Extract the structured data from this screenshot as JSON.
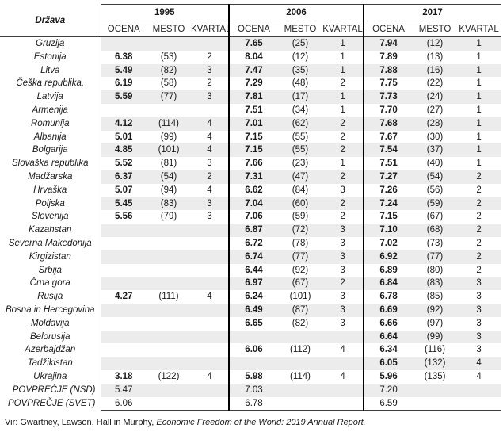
{
  "table": {
    "country_header": "Država",
    "year_groups": [
      {
        "year": "1995",
        "subcols": [
          "OCENA",
          "MESTO",
          "KVARTAL"
        ]
      },
      {
        "year": "2006",
        "subcols": [
          "OCENA",
          "MESTO",
          "KVARTAL"
        ]
      },
      {
        "year": "2017",
        "subcols": [
          "OCENA",
          "MESTO",
          "KVARTAL"
        ]
      }
    ],
    "rows": [
      {
        "country": "Gruzija",
        "cells": [
          "",
          "",
          "",
          "7.65",
          "(25)",
          "1",
          "7.94",
          "(12)",
          "1"
        ]
      },
      {
        "country": "Estonija",
        "cells": [
          "6.38",
          "(53)",
          "2",
          "8.04",
          "(12)",
          "1",
          "7.89",
          "(13)",
          "1"
        ]
      },
      {
        "country": "Litva",
        "cells": [
          "5.49",
          "(82)",
          "3",
          "7.47",
          "(35)",
          "1",
          "7.88",
          "(16)",
          "1"
        ]
      },
      {
        "country": "Češka republika.",
        "cells": [
          "6.19",
          "(58)",
          "2",
          "7.29",
          "(48)",
          "2",
          "7.75",
          "(22)",
          "1"
        ]
      },
      {
        "country": "Latvija",
        "cells": [
          "5.59",
          "(77)",
          "3",
          "7.81",
          "(17)",
          "1",
          "7.73",
          "(24)",
          "1"
        ]
      },
      {
        "country": "Armenija",
        "cells": [
          "",
          "",
          "",
          "7.51",
          "(34)",
          "1",
          "7.70",
          "(27)",
          "1"
        ]
      },
      {
        "country": "Romunija",
        "cells": [
          "4.12",
          "(114)",
          "4",
          "7.01",
          "(62)",
          "2",
          "7.68",
          "(28)",
          "1"
        ]
      },
      {
        "country": "Albanija",
        "cells": [
          "5.01",
          "(99)",
          "4",
          "7.15",
          "(55)",
          "2",
          "7.67",
          "(30)",
          "1"
        ]
      },
      {
        "country": "Bolgarija",
        "cells": [
          "4.85",
          "(101)",
          "4",
          "7.15",
          "(55)",
          "2",
          "7.54",
          "(37)",
          "1"
        ]
      },
      {
        "country": "Slovaška republika",
        "cells": [
          "5.52",
          "(81)",
          "3",
          "7.66",
          "(23)",
          "1",
          "7.51",
          "(40)",
          "1"
        ]
      },
      {
        "country": "Madžarska",
        "cells": [
          "6.37",
          "(54)",
          "2",
          "7.31",
          "(47)",
          "2",
          "7.27",
          "(54)",
          "2"
        ]
      },
      {
        "country": "Hrvaška",
        "cells": [
          "5.07",
          "(94)",
          "4",
          "6.62",
          "(84)",
          "3",
          "7.26",
          "(56)",
          "2"
        ]
      },
      {
        "country": "Poljska",
        "cells": [
          "5.45",
          "(83)",
          "3",
          "7.04",
          "(60)",
          "2",
          "7.24",
          "(59)",
          "2"
        ]
      },
      {
        "country": "Slovenija",
        "cells": [
          "5.56",
          "(79)",
          "3",
          "7.06",
          "(59)",
          "2",
          "7.15",
          "(67)",
          "2"
        ]
      },
      {
        "country": "Kazahstan",
        "cells": [
          "",
          "",
          "",
          "6.87",
          "(72)",
          "3",
          "7.10",
          "(68)",
          "2"
        ]
      },
      {
        "country": "Severna Makedonija",
        "cells": [
          "",
          "",
          "",
          "6.72",
          "(78)",
          "3",
          "7.02",
          "(73)",
          "2"
        ]
      },
      {
        "country": "Kirgizistan",
        "cells": [
          "",
          "",
          "",
          "6.74",
          "(77)",
          "3",
          "6.92",
          "(77)",
          "2"
        ]
      },
      {
        "country": "Srbija",
        "cells": [
          "",
          "",
          "",
          "6.44",
          "(92)",
          "3",
          "6.89",
          "(80)",
          "2"
        ]
      },
      {
        "country": "Črna gora",
        "cells": [
          "",
          "",
          "",
          "6.97",
          "(67)",
          "2",
          "6.84",
          "(83)",
          "3"
        ]
      },
      {
        "country": "Rusija",
        "cells": [
          "4.27",
          "(111)",
          "4",
          "6.24",
          "(101)",
          "3",
          "6.78",
          "(85)",
          "3"
        ]
      },
      {
        "country": "Bosna in Hercegovina",
        "cells": [
          "",
          "",
          "",
          "6.49",
          "(87)",
          "3",
          "6.69",
          "(92)",
          "3"
        ]
      },
      {
        "country": "Moldavija",
        "cells": [
          "",
          "",
          "",
          "6.65",
          "(82)",
          "3",
          "6.66",
          "(97)",
          "3"
        ]
      },
      {
        "country": "Belorusija",
        "cells": [
          "",
          "",
          "",
          "",
          "",
          "",
          "6.64",
          "(99)",
          "3"
        ]
      },
      {
        "country": "Azerbajdžan",
        "cells": [
          "",
          "",
          "",
          "6.06",
          "(112)",
          "4",
          "6.34",
          "(116)",
          "3"
        ]
      },
      {
        "country": "Tadžikistan",
        "cells": [
          "",
          "",
          "",
          "",
          "",
          "",
          "6.05",
          "(132)",
          "4"
        ]
      },
      {
        "country": "Ukrajina",
        "cells": [
          "3.18",
          "(122)",
          "4",
          "5.98",
          "(114)",
          "4",
          "5.96",
          "(135)",
          "4"
        ]
      }
    ],
    "summary_rows": [
      {
        "label": "POVPREČJE (NSD)",
        "cells": [
          "5.47",
          "",
          "",
          "7.03",
          "",
          "",
          "7.20",
          "",
          ""
        ]
      },
      {
        "label": "POVPREČJE (SVET)",
        "cells": [
          "6.06",
          "",
          "",
          "6.78",
          "",
          "",
          "6.59",
          "",
          ""
        ]
      }
    ]
  },
  "footer": {
    "source_normal": "Vir: Gwartney, Lawson, Hall in Murphy, ",
    "source_italic": "Economic Freedom of the World: 2019 Annual Report."
  },
  "colors": {
    "stripe": "#ececec",
    "country_divider": "#b7b7b7",
    "rule_dark": "#404040",
    "year_rule_light": "#d9d9d9",
    "group_divider": "#000000"
  }
}
